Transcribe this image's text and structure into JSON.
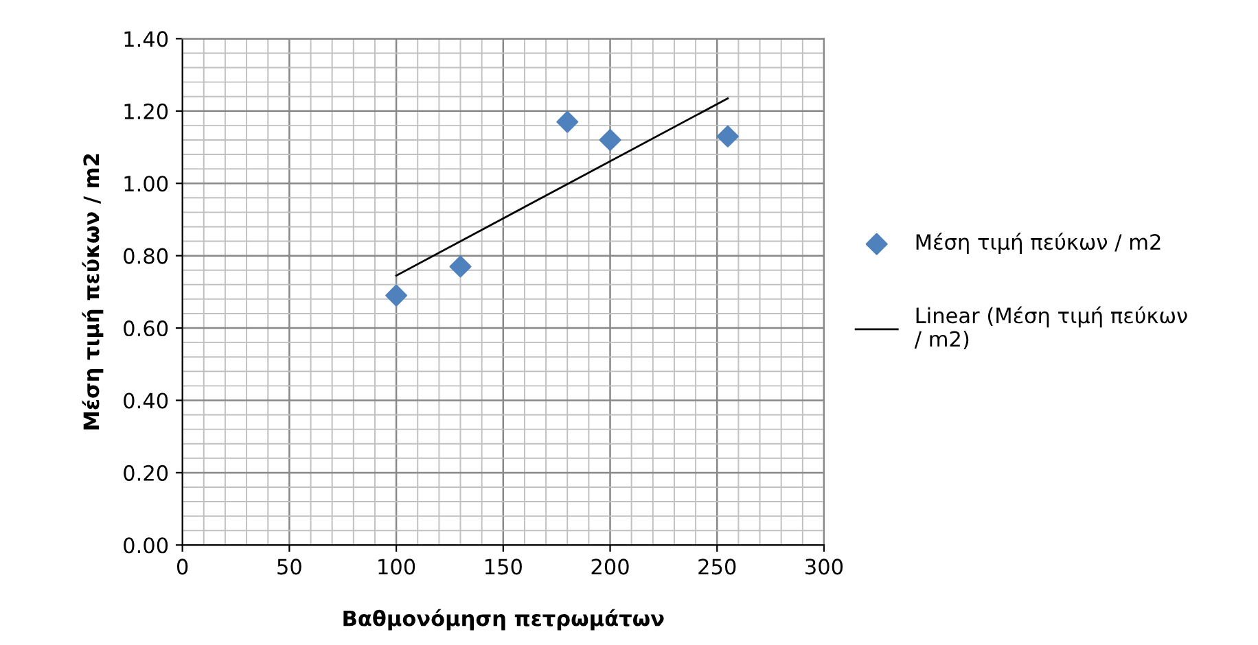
{
  "chart_data": {
    "type": "scatter",
    "xlabel": "Βαθμονόμηση πετρωμάτων",
    "ylabel": "Μέση τιμή πεύκων / m2",
    "series": [
      {
        "name": "Μέση τιμή πεύκων / m2",
        "color": "#4f81bd",
        "marker": "diamond",
        "x": [
          100,
          130,
          180,
          200,
          255
        ],
        "values": [
          0.69,
          0.77,
          1.17,
          1.12,
          1.13
        ]
      },
      {
        "name": "Linear (Μέση τιμή πεύκων / m2)",
        "type": "line",
        "color": "#000000",
        "line_style": "solid",
        "x": [
          100,
          255
        ],
        "values": [
          0.745,
          1.235
        ]
      }
    ],
    "xlim": [
      0,
      300
    ],
    "xticks": [
      0,
      50,
      100,
      150,
      200,
      250,
      300
    ],
    "ylim": [
      0,
      1.4
    ],
    "yticks": [
      {
        "value": 0,
        "label": "0.00"
      },
      {
        "value": 0.2,
        "label": "0.20"
      },
      {
        "value": 0.4,
        "label": "0.40"
      },
      {
        "value": 0.6,
        "label": "0.60"
      },
      {
        "value": 0.8,
        "label": "0.80"
      },
      {
        "value": 1.0,
        "label": "1.00"
      },
      {
        "value": 1.2,
        "label": "1.20"
      },
      {
        "value": 1.4,
        "label": "1.40"
      }
    ],
    "grid": true,
    "legend": "right"
  }
}
